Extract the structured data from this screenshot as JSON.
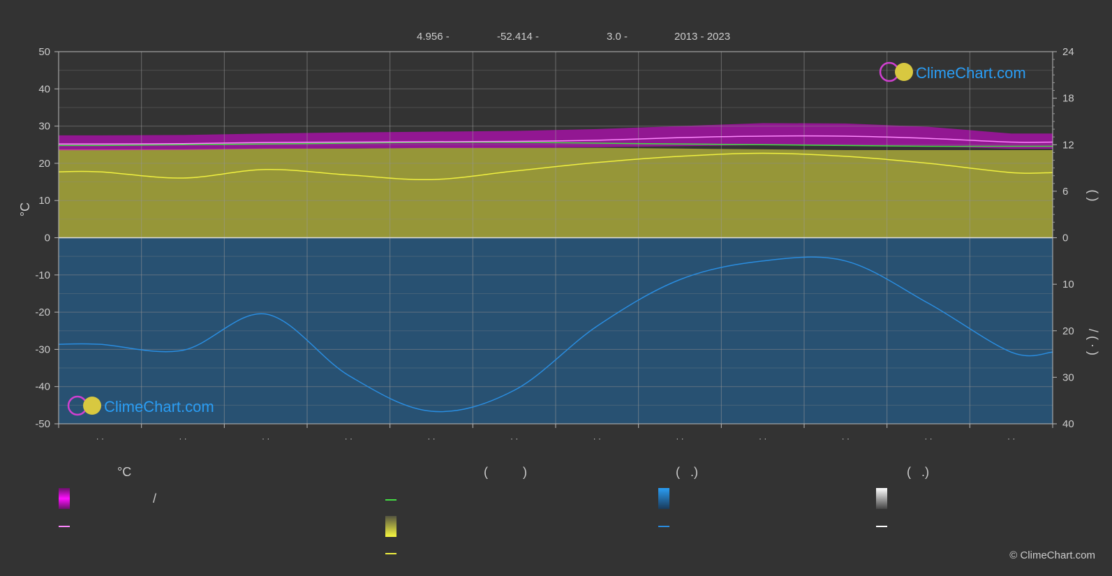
{
  "header": {
    "lat": "4.956 -",
    "lon": "-52.414 -",
    "elev": "3.0 -",
    "years": "2013 - 2023"
  },
  "axes": {
    "left_unit": "°C",
    "left_ticks": [
      "50",
      "40",
      "30",
      "20",
      "10",
      "0",
      "-10",
      "-20",
      "-30",
      "-40",
      "-50"
    ],
    "right_top_ticks": [
      "24",
      "18",
      "12",
      "6",
      "0"
    ],
    "right_bottom_ticks": [
      "10",
      "20",
      "30",
      "40"
    ],
    "right_top_label_chars": "(    )",
    "right_bottom_label_chars": "/  ( · )",
    "month_marks": [
      "· ·",
      "· ·",
      "· ·",
      "· ·",
      "· ·",
      "· ·",
      "· ·",
      "· ·",
      "· ·",
      "· ·",
      "· ·",
      "· ·"
    ]
  },
  "logo": {
    "text": "ClimeChart.com"
  },
  "legend": {
    "col1_title": "°C",
    "col1_mark": "/",
    "col2_title": "(          )",
    "col3_title": "(   .)",
    "col4_title": "(   .)"
  },
  "copyright": "© ClimeChart.com",
  "colors": {
    "background": "#333333",
    "temperature_band": "#e000e0",
    "temperature_mean": "#ff88ff",
    "daylight": "#44dd44",
    "sunshine_band": "#a8a83a",
    "sunshine_mean": "#f0f040",
    "precipitation_band": "#1f6aa5",
    "precipitation_mean": "#2a8de0",
    "logo_text": "#2a9df4"
  },
  "chart_data": {
    "type": "area",
    "x": [
      0.5,
      1.5,
      2.5,
      3.5,
      4.5,
      5.5,
      6.5,
      7.5,
      8.5,
      9.5,
      10.5,
      11.5
    ],
    "left_axis": {
      "unit": "°C",
      "ylim": [
        -50,
        50
      ]
    },
    "right_axis_top": {
      "ylim": [
        0,
        24
      ]
    },
    "right_axis_bottom": {
      "ylim": [
        0,
        40
      ],
      "inverted": true
    },
    "grid": true,
    "series": [
      {
        "axis": "left",
        "kind": "line",
        "values": [
          25.2,
          25.3,
          25.6,
          25.7,
          25.8,
          25.9,
          26.2,
          26.9,
          27.3,
          27.3,
          26.7,
          25.7
        ]
      },
      {
        "axis": "left",
        "kind": "band",
        "low": [
          23.5,
          23.6,
          23.9,
          24.0,
          24.1,
          24.1,
          24.3,
          24.6,
          24.9,
          24.9,
          24.6,
          23.9
        ],
        "high": [
          27.5,
          27.6,
          28.0,
          28.3,
          28.5,
          28.7,
          29.2,
          30.0,
          30.8,
          30.7,
          29.8,
          28.0
        ]
      },
      {
        "axis": "right_top",
        "kind": "line",
        "values": [
          11.9,
          12.0,
          12.1,
          12.2,
          12.3,
          12.3,
          12.2,
          12.1,
          12.0,
          11.9,
          11.8,
          11.8
        ]
      },
      {
        "axis": "right_top",
        "kind": "line",
        "values": [
          8.5,
          7.7,
          8.8,
          8.1,
          7.5,
          8.6,
          9.7,
          10.5,
          10.9,
          10.5,
          9.6,
          8.4
        ]
      },
      {
        "axis": "right_top",
        "kind": "band_from_zero",
        "values": [
          11.4,
          11.4,
          11.5,
          11.5,
          11.6,
          11.6,
          11.6,
          11.5,
          11.4,
          11.3,
          11.3,
          11.3
        ]
      },
      {
        "axis": "right_bottom",
        "kind": "line",
        "values": [
          22.9,
          24.2,
          16.4,
          29.6,
          37.3,
          32.8,
          19.0,
          9.0,
          5.0,
          5.0,
          14.1,
          24.6
        ]
      },
      {
        "axis": "right_bottom",
        "kind": "band_from_zero",
        "values": [
          40,
          40,
          40,
          40,
          40,
          40,
          40,
          40,
          40,
          40,
          40,
          40
        ]
      }
    ]
  }
}
